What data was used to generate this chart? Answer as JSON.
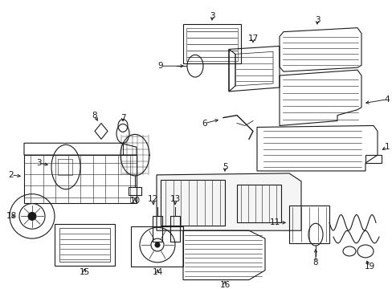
{
  "bg_color": "#ffffff",
  "line_color": "#1a1a1a",
  "figsize": [
    4.89,
    3.6
  ],
  "dpi": 100,
  "parts": {
    "label_fontsize": 7.5,
    "arrow_lw": 0.7,
    "part_lw": 0.8
  }
}
